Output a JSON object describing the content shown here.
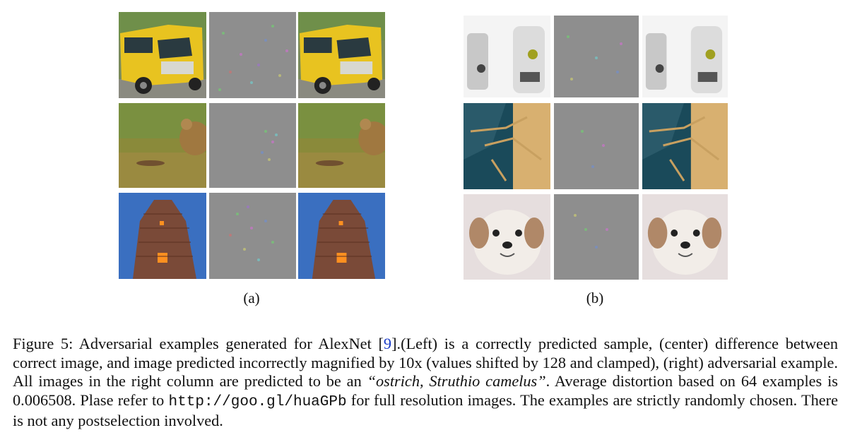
{
  "panels": [
    {
      "label": "(a)"
    },
    {
      "label": "(b)"
    }
  ],
  "caption": {
    "prefix": "Figure 5: Adversarial examples generated for AlexNet [",
    "ref": "9",
    "part1": "].(Left) is a correctly predicted sample, (center) difference between correct image, and image predicted incorrectly magnified by 10x (values shifted by 128 and clamped), (right) adversarial example. All images in the right column are predicted to be an ",
    "class_name": "“ostrich, Struthio camelus”",
    "part2": ". Average distortion based on 64 examples is 0.006508. Plase refer to ",
    "url": "http://goo.gl/huaGPb",
    "part3": " for full resolution images. The examples are strictly randomly chosen. There is not any postselection involved."
  }
}
